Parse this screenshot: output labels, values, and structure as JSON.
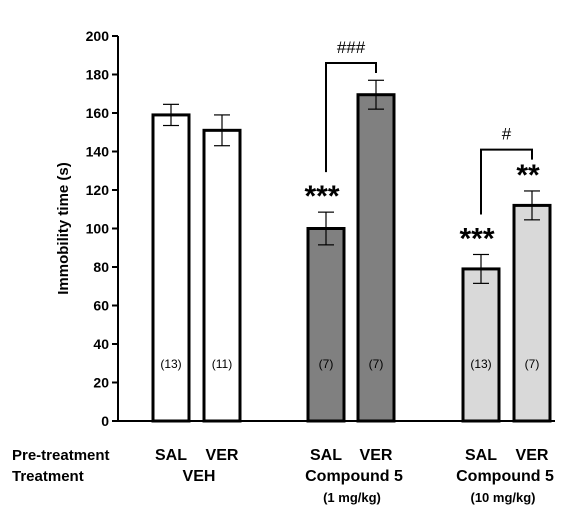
{
  "chart_data": {
    "type": "bar",
    "ylabel": "Immobility time (s)",
    "ylim": [
      0,
      200
    ],
    "yticks": [
      0,
      20,
      40,
      60,
      80,
      100,
      120,
      140,
      160,
      180,
      200
    ],
    "grid": false,
    "row_labels": [
      "Pre-treatment",
      "Treatment"
    ],
    "bars": [
      {
        "pretreatment": "SAL",
        "value": 159,
        "error": 5.5,
        "n_label": "(13)",
        "color": "#ffffff",
        "significance": ""
      },
      {
        "pretreatment": "VER",
        "value": 151,
        "error": 8,
        "n_label": "(11)",
        "color": "#ffffff",
        "significance": ""
      },
      {
        "pretreatment": "SAL",
        "value": 100,
        "error": 8.5,
        "n_label": "(7)",
        "color": "#808080",
        "significance": "***"
      },
      {
        "pretreatment": "VER",
        "value": 169.5,
        "error": 7.5,
        "n_label": "(7)",
        "color": "#808080",
        "significance": ""
      },
      {
        "pretreatment": "SAL",
        "value": 79,
        "error": 7.5,
        "n_label": "(13)",
        "color": "#d9d9d9",
        "significance": "***"
      },
      {
        "pretreatment": "VER",
        "value": 112,
        "error": 7.5,
        "n_label": "(7)",
        "color": "#d9d9d9",
        "significance": "**"
      }
    ],
    "groups": [
      {
        "treatment": "VEH",
        "dose": ""
      },
      {
        "treatment": "Compound 5",
        "dose": "(1 mg/kg)"
      },
      {
        "treatment": "Compound 5",
        "dose": "(10 mg/kg)"
      }
    ],
    "comparisons": [
      {
        "from_bar": 2,
        "to_bar": 3,
        "label": "###",
        "y": 186
      },
      {
        "from_bar": 4,
        "to_bar": 5,
        "label": "#",
        "y": 141
      }
    ]
  }
}
